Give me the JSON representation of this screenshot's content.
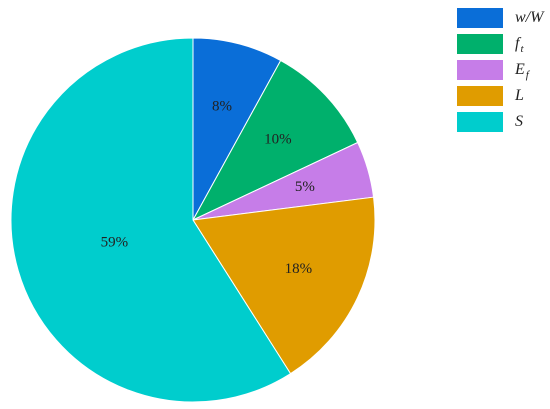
{
  "chart_data": {
    "type": "pie",
    "series": [
      {
        "name": "w/W",
        "color": "#0a6ed8"
      },
      {
        "name": "f",
        "subscript": "t",
        "color": "#00b06c"
      },
      {
        "name": "E",
        "subscript": "f",
        "color": "#c67de8"
      },
      {
        "name": "L",
        "color": "#e09c00"
      },
      {
        "name": "S",
        "color": "#00cdcd"
      }
    ],
    "values": [
      8,
      10,
      5,
      18,
      59
    ],
    "value_labels": [
      "8%",
      "10%",
      "5%",
      "18%",
      "59%"
    ],
    "legend": "upper right"
  }
}
